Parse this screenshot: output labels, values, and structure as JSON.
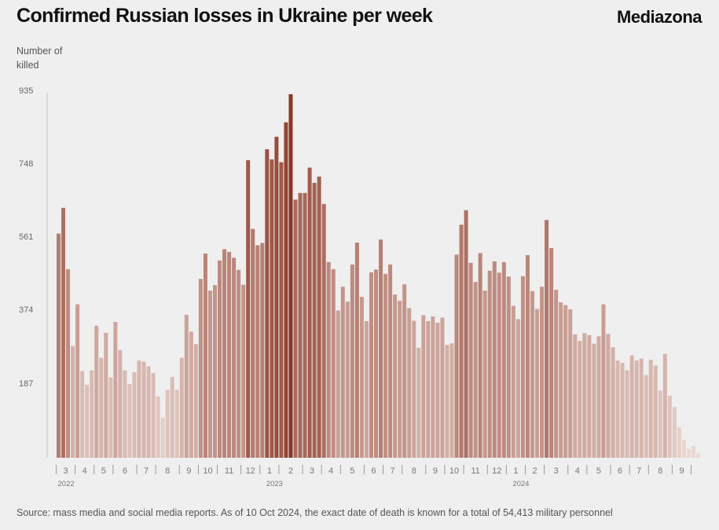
{
  "header": {
    "title": "Confirmed Russian losses in Ukraine per week",
    "brand": "Mediazona"
  },
  "footer": {
    "source": "Source: mass media and social media reports. As of 10 Oct 2024, the exact date of death is known for a total of 54,413 military personnel"
  },
  "chart_data": {
    "type": "bar",
    "title": "Confirmed Russian losses in Ukraine per week",
    "ylabel": "Number of killed",
    "xlabel": "",
    "ylim": [
      0,
      935
    ],
    "yticks": [
      935,
      748,
      561,
      374,
      187
    ],
    "grid": false,
    "colors": {
      "low": "#ecdad4",
      "high": "#8b3524"
    },
    "x_month_labels": [
      {
        "label": "3",
        "start_week": 0,
        "end_week": 4
      },
      {
        "label": "4",
        "start_week": 4,
        "end_week": 8
      },
      {
        "label": "5",
        "start_week": 8,
        "end_week": 12
      },
      {
        "label": "6",
        "start_week": 12,
        "end_week": 17
      },
      {
        "label": "7",
        "start_week": 17,
        "end_week": 21
      },
      {
        "label": "8",
        "start_week": 21,
        "end_week": 26
      },
      {
        "label": "9",
        "start_week": 26,
        "end_week": 30
      },
      {
        "label": "10",
        "start_week": 30,
        "end_week": 34
      },
      {
        "label": "11",
        "start_week": 34,
        "end_week": 39
      },
      {
        "label": "12",
        "start_week": 39,
        "end_week": 43
      },
      {
        "label": "1",
        "start_week": 43,
        "end_week": 47
      },
      {
        "label": "2",
        "start_week": 47,
        "end_week": 52
      },
      {
        "label": "3",
        "start_week": 52,
        "end_week": 56
      },
      {
        "label": "4",
        "start_week": 56,
        "end_week": 60
      },
      {
        "label": "5",
        "start_week": 60,
        "end_week": 65
      },
      {
        "label": "6",
        "start_week": 65,
        "end_week": 69
      },
      {
        "label": "7",
        "start_week": 69,
        "end_week": 73
      },
      {
        "label": "8",
        "start_week": 73,
        "end_week": 78
      },
      {
        "label": "9",
        "start_week": 78,
        "end_week": 82
      },
      {
        "label": "10",
        "start_week": 82,
        "end_week": 86
      },
      {
        "label": "11",
        "start_week": 86,
        "end_week": 91
      },
      {
        "label": "12",
        "start_week": 91,
        "end_week": 95
      },
      {
        "label": "1",
        "start_week": 95,
        "end_week": 99
      },
      {
        "label": "2",
        "start_week": 99,
        "end_week": 103
      },
      {
        "label": "3",
        "start_week": 103,
        "end_week": 108
      },
      {
        "label": "4",
        "start_week": 108,
        "end_week": 112
      },
      {
        "label": "5",
        "start_week": 112,
        "end_week": 117
      },
      {
        "label": "6",
        "start_week": 117,
        "end_week": 121
      },
      {
        "label": "7",
        "start_week": 121,
        "end_week": 125
      },
      {
        "label": "8",
        "start_week": 125,
        "end_week": 130
      },
      {
        "label": "9",
        "start_week": 130,
        "end_week": 134
      }
    ],
    "x_year_labels": [
      {
        "label": "2022",
        "at_week": 2
      },
      {
        "label": "2023",
        "at_week": 46
      },
      {
        "label": "2024",
        "at_week": 98
      }
    ],
    "values": [
      574,
      640,
      483,
      286,
      393,
      222,
      187,
      224,
      338,
      256,
      320,
      206,
      348,
      276,
      224,
      189,
      219,
      249,
      246,
      234,
      217,
      157,
      103,
      174,
      207,
      174,
      256,
      366,
      323,
      291,
      458,
      523,
      428,
      442,
      505,
      534,
      527,
      512,
      481,
      443,
      762,
      586,
      544,
      550,
      790,
      764,
      822,
      757,
      859,
      931,
      661,
      678,
      678,
      743,
      704,
      720,
      650,
      501,
      483,
      377,
      438,
      400,
      495,
      551,
      412,
      350,
      475,
      482,
      559,
      471,
      495,
      418,
      402,
      444,
      383,
      351,
      282,
      365,
      350,
      362,
      346,
      359,
      289,
      293,
      520,
      597,
      634,
      499,
      450,
      524,
      428,
      479,
      503,
      474,
      501,
      464,
      389,
      355,
      465,
      519,
      427,
      381,
      438,
      609,
      537,
      430,
      398,
      391,
      380,
      316,
      299,
      319,
      314,
      292,
      311,
      393,
      317,
      283,
      249,
      243,
      224,
      262,
      249,
      254,
      212,
      251,
      236,
      172,
      266,
      159,
      130,
      78,
      46,
      23,
      30,
      11
    ]
  }
}
